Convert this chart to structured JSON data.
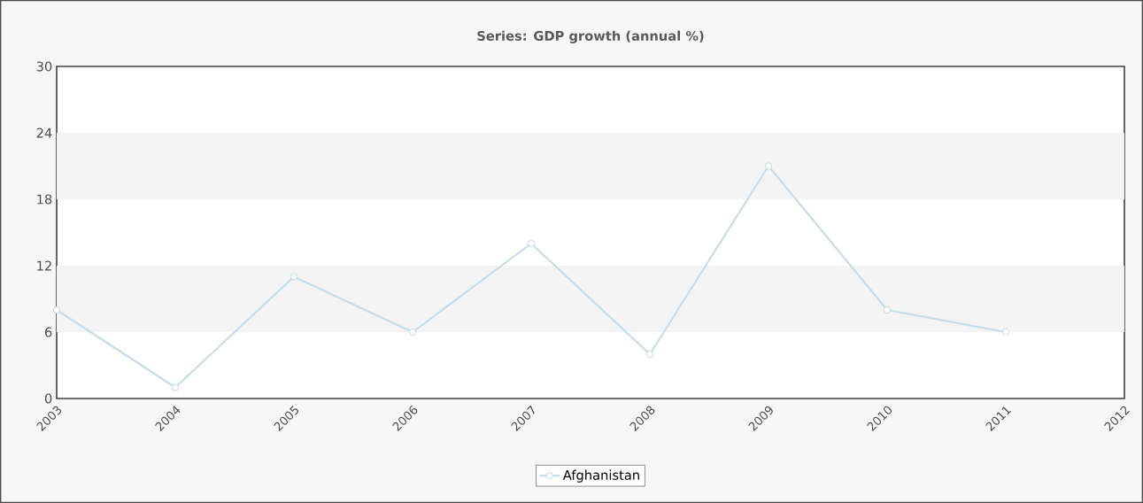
{
  "chart_data": {
    "type": "line",
    "title": "Series: GDP growth (annual %)",
    "x": [
      2003,
      2004,
      2005,
      2006,
      2007,
      2008,
      2009,
      2010,
      2011
    ],
    "series": [
      {
        "name": "Afghanistan",
        "color": "#c8dce8",
        "values": [
          8,
          1,
          11,
          6,
          14,
          4,
          21,
          8,
          6
        ]
      }
    ],
    "xlim": [
      2003,
      2012
    ],
    "xticks": [
      2003,
      2004,
      2005,
      2006,
      2007,
      2008,
      2009,
      2010,
      2011,
      2012
    ],
    "ylim": [
      0,
      30
    ],
    "yticks": [
      0,
      6,
      12,
      18,
      24,
      30
    ],
    "bands": [
      {
        "axis": "y",
        "from": 6,
        "to": 12,
        "color": "#f4f4f4"
      },
      {
        "axis": "y",
        "from": 18,
        "to": 24,
        "color": "#f4f4f4"
      }
    ],
    "marker": "circle",
    "line_style": "solid",
    "legend": "bottom"
  }
}
